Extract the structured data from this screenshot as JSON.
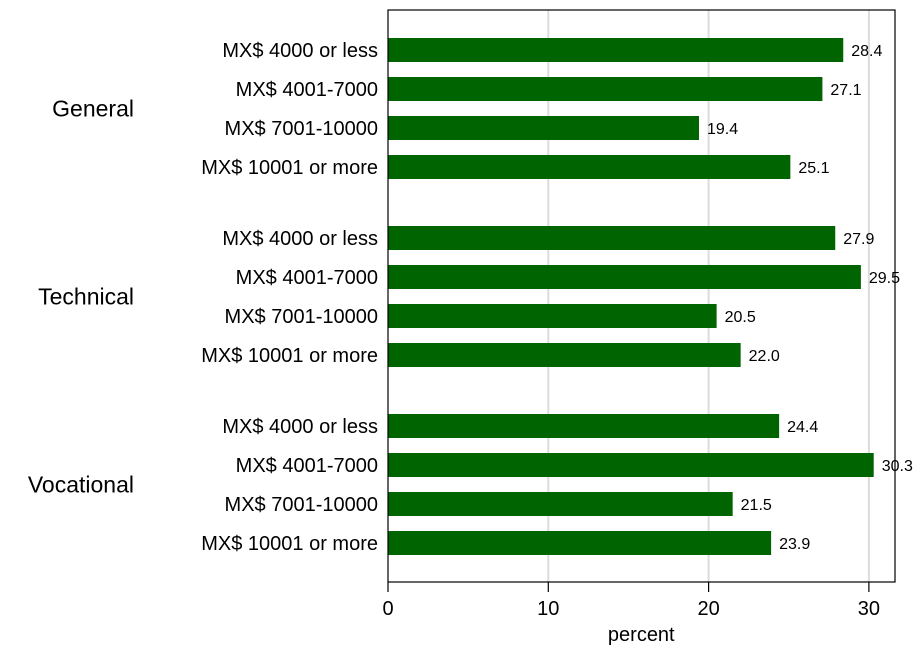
{
  "chart_data": {
    "type": "bar",
    "orientation": "horizontal",
    "title": "",
    "xlabel": "percent",
    "xlim": [
      0,
      32
    ],
    "xticks": [
      0,
      10,
      20,
      30
    ],
    "xtick_labels": [
      "0",
      "10",
      "20",
      "30"
    ],
    "grid": "vertical",
    "bar_color": "#006400",
    "gridline_color": "#dcdcdc",
    "groups": [
      {
        "name": "General",
        "categories": [
          "MX$ 4000 or less",
          "MX$ 4001-7000",
          "MX$ 7001-10000",
          "MX$ 10001 or more"
        ],
        "values": [
          28.4,
          27.1,
          19.4,
          25.1
        ],
        "value_labels": [
          "28.4",
          "27.1",
          "19.4",
          "25.1"
        ]
      },
      {
        "name": "Technical",
        "categories": [
          "MX$ 4000 or less",
          "MX$ 4001-7000",
          "MX$ 7001-10000",
          "MX$ 10001 or more"
        ],
        "values": [
          27.9,
          29.5,
          20.5,
          22.0
        ],
        "value_labels": [
          "27.9",
          "29.5",
          "20.5",
          "22.0"
        ]
      },
      {
        "name": "Vocational",
        "categories": [
          "MX$ 4000 or less",
          "MX$ 4001-7000",
          "MX$ 7001-10000",
          "MX$ 10001 or more"
        ],
        "values": [
          24.4,
          30.3,
          21.5,
          23.9
        ],
        "value_labels": [
          "24.4",
          "30.3",
          "21.5",
          "23.9"
        ]
      }
    ]
  }
}
